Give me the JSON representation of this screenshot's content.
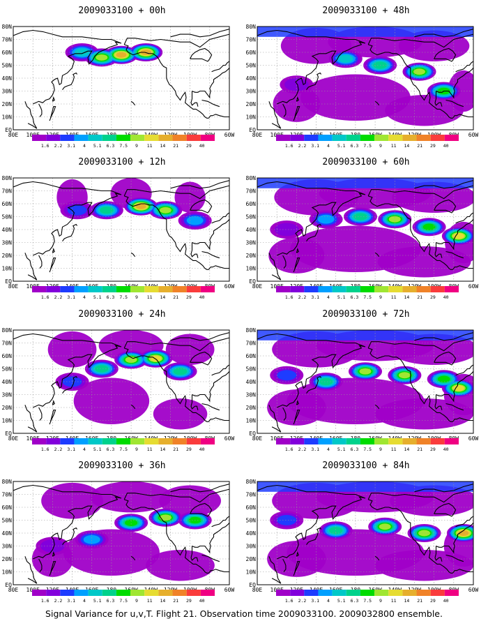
{
  "footer": "Signal Variance for u,v,T. Flight 21. Observation time 2009033100. 2009032800 ensemble.",
  "lat_labels": [
    "EQ",
    "10N",
    "20N",
    "30N",
    "40N",
    "50N",
    "60N",
    "70N",
    "80N"
  ],
  "lon_labels": [
    "80E",
    "100E",
    "120E",
    "140E",
    "160E",
    "180",
    "160W",
    "140W",
    "120W",
    "100W",
    "80W",
    "60W"
  ],
  "legend": {
    "labels": [
      "1.6",
      "2.2",
      "3.1",
      "4",
      "5.1",
      "6.3",
      "7.5",
      "9",
      "11",
      "14",
      "21",
      "29",
      "40"
    ],
    "colors": [
      "#a000c8",
      "#8200dc",
      "#1e3cff",
      "#00a0ff",
      "#00c8c8",
      "#00d28c",
      "#00dc00",
      "#a0e632",
      "#e6dc32",
      "#e6af2d",
      "#f08228",
      "#fa3c3c",
      "#f00082"
    ]
  },
  "panels": [
    {
      "title": "2009033100 + 00h"
    },
    {
      "title": "2009033100 + 48h"
    },
    {
      "title": "2009033100 + 12h"
    },
    {
      "title": "2009033100 + 60h"
    },
    {
      "title": "2009033100 + 24h"
    },
    {
      "title": "2009033100 + 72h"
    },
    {
      "title": "2009033100 + 36h"
    },
    {
      "title": "2009033100 + 84h"
    }
  ]
}
